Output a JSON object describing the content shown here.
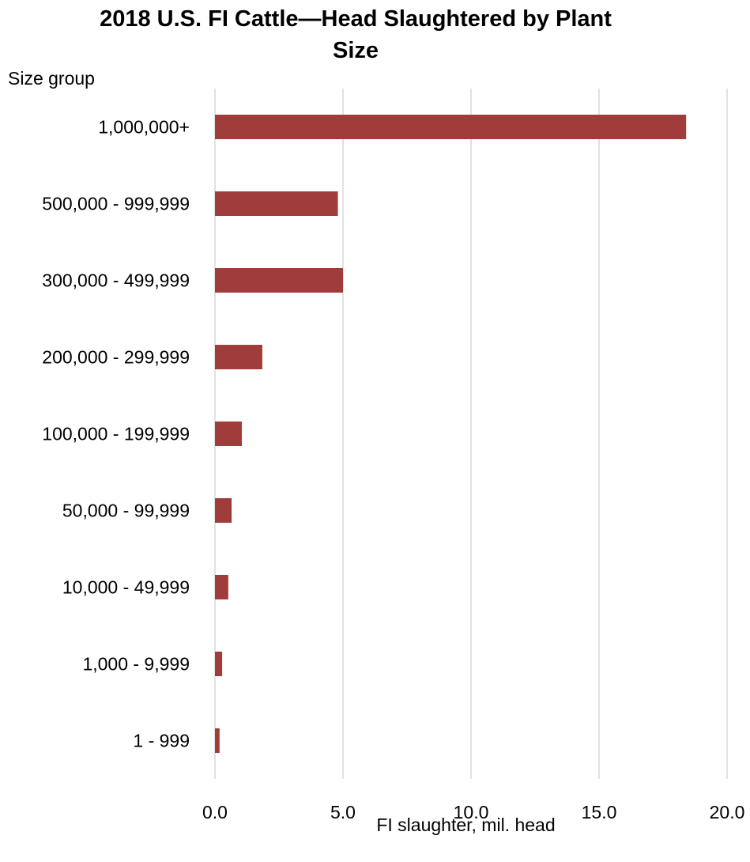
{
  "chart_data": {
    "type": "bar",
    "orientation": "horizontal",
    "title": "2018 U.S. FI Cattle—Head Slaughtered by Plant Size",
    "ylabel": "Size group",
    "xlabel": "FI slaughter, mil. head",
    "categories": [
      "1,000,000+",
      "500,000 - 999,999",
      "300,000 - 499,999",
      "200,000 - 299,999",
      "100,000 - 199,999",
      "50,000 - 99,999",
      "10,000 - 49,999",
      "1,000 - 9,999",
      "1 - 999"
    ],
    "values": [
      18.4,
      4.8,
      5.0,
      1.85,
      1.05,
      0.65,
      0.52,
      0.28,
      0.18
    ],
    "xlim": [
      0,
      20
    ],
    "xticks": [
      "0.0",
      "5.0",
      "10.0",
      "15.0",
      "20.0"
    ],
    "grid": true,
    "bar_color": "#a03c3a",
    "gridline_color": "#d9d9d9"
  }
}
